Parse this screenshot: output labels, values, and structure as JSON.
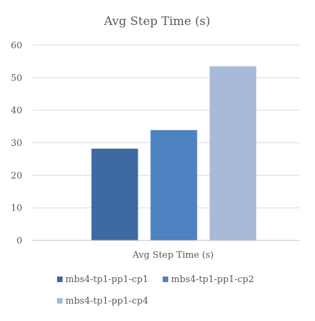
{
  "chart_data": {
    "type": "bar",
    "title": "Avg Step Time (s)",
    "categories": [
      "Avg Step Time (s)"
    ],
    "series": [
      {
        "name": "mbs4-tp1-pp1-cp1",
        "values": [
          28.2
        ],
        "color": "#3f6aa1"
      },
      {
        "name": "mbs4-tp1-pp1-cp2",
        "values": [
          33.9
        ],
        "color": "#4e82c1"
      },
      {
        "name": "mbs4-tp1-pp1-cp4",
        "values": [
          53.5
        ],
        "color": "#a9b9d9"
      }
    ],
    "ylim": [
      0,
      60
    ],
    "yticks": [
      "0",
      "10",
      "20",
      "30",
      "40",
      "50",
      "60"
    ],
    "grid": true,
    "legend": "bottom"
  }
}
